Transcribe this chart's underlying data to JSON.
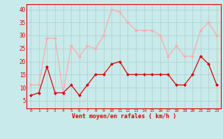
{
  "hours": [
    0,
    1,
    2,
    3,
    4,
    5,
    6,
    7,
    8,
    9,
    10,
    11,
    12,
    13,
    14,
    15,
    16,
    17,
    18,
    19,
    20,
    21,
    22,
    23
  ],
  "wind_avg": [
    7,
    8,
    18,
    8,
    8,
    11,
    7,
    11,
    15,
    15,
    19,
    20,
    15,
    15,
    15,
    15,
    15,
    15,
    11,
    11,
    15,
    22,
    19,
    11
  ],
  "wind_gust": [
    11,
    11,
    29,
    29,
    8,
    26,
    22,
    26,
    25,
    30,
    40,
    39,
    35,
    32,
    32,
    32,
    30,
    22,
    26,
    22,
    22,
    32,
    35,
    30
  ],
  "avg_color": "#dd0000",
  "gust_color": "#ffaaaa",
  "bg_color": "#c8eaea",
  "grid_color": "#aacccc",
  "xlabel": "Vent moyen/en rafales ( km/h )",
  "xlabel_color": "#dd0000",
  "tick_color": "#dd0000",
  "spine_color": "#dd0000",
  "ylim_min": 2,
  "ylim_max": 42,
  "yticks": [
    5,
    10,
    15,
    20,
    25,
    30,
    35,
    40
  ],
  "markersize": 2.5,
  "linewidth": 0.9
}
